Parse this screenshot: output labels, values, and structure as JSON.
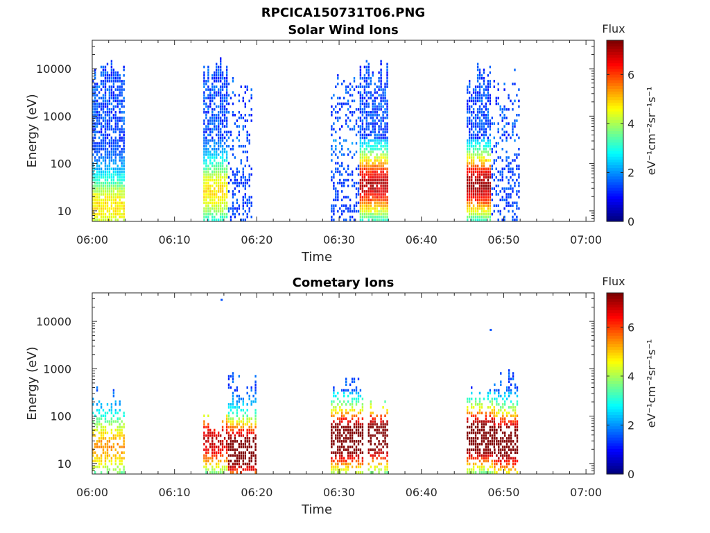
{
  "figure": {
    "title": "RPCICA150731T06.PNG"
  },
  "chart_data": [
    {
      "type": "heatmap",
      "title": "Solar Wind Ions",
      "xlabel": "Time",
      "ylabel": "Energy (eV)",
      "x_range_minutes": [
        0,
        61
      ],
      "x_ticks": [
        {
          "minute": 0,
          "label": "06:00"
        },
        {
          "minute": 10,
          "label": "06:10"
        },
        {
          "minute": 20,
          "label": "06:20"
        },
        {
          "minute": 30,
          "label": "06:30"
        },
        {
          "minute": 40,
          "label": "06:40"
        },
        {
          "minute": 50,
          "label": "06:50"
        },
        {
          "minute": 60,
          "label": "07:00"
        }
      ],
      "y_scale": "log",
      "y_range_eV": [
        6,
        40000
      ],
      "y_ticks": [
        {
          "value": 10,
          "label": "10"
        },
        {
          "value": 100,
          "label": "100"
        },
        {
          "value": 1000,
          "label": "1000"
        },
        {
          "value": 10000,
          "label": "10000"
        }
      ],
      "colorbar": {
        "title": "Flux",
        "units_label": "eV⁻¹cm⁻²sr⁻¹s⁻¹",
        "range": [
          0,
          7.4
        ],
        "ticks": [
          {
            "value": 0,
            "label": "0"
          },
          {
            "value": 2,
            "label": "2"
          },
          {
            "value": 4,
            "label": "4"
          },
          {
            "value": 6,
            "label": "6"
          }
        ],
        "colormap": "jet"
      },
      "bursts": [
        {
          "t_start": 0.0,
          "t_end": 3.8,
          "E_max": 16000,
          "peak_E": 12,
          "peak_flux": 3.4,
          "density": 0.75
        },
        {
          "t_start": 13.5,
          "t_end": 16.5,
          "E_max": 17000,
          "peak_E": 25,
          "peak_flux": 3.4,
          "density": 0.75
        },
        {
          "t_start": 16.5,
          "t_end": 19.5,
          "E_max": 8000,
          "peak_E": 3000,
          "peak_flux": 1.9,
          "density": 0.25
        },
        {
          "t_start": 29.0,
          "t_end": 32.5,
          "E_max": 10000,
          "peak_E": 2000,
          "peak_flux": 2.2,
          "density": 0.25
        },
        {
          "t_start": 32.5,
          "t_end": 36.0,
          "E_max": 14000,
          "peak_E": 36,
          "peak_flux": 5.6,
          "density": 0.75
        },
        {
          "t_start": 45.5,
          "t_end": 48.5,
          "E_max": 14000,
          "peak_E": 36,
          "peak_flux": 5.8,
          "density": 0.75
        },
        {
          "t_start": 48.5,
          "t_end": 52.0,
          "E_max": 10000,
          "peak_E": 3000,
          "peak_flux": 1.9,
          "density": 0.25
        }
      ]
    },
    {
      "type": "heatmap",
      "title": "Cometary Ions",
      "xlabel": "Time",
      "ylabel": "Energy (eV)",
      "x_range_minutes": [
        0,
        61
      ],
      "x_ticks": [
        {
          "minute": 0,
          "label": "06:00"
        },
        {
          "minute": 10,
          "label": "06:10"
        },
        {
          "minute": 20,
          "label": "06:20"
        },
        {
          "minute": 30,
          "label": "06:30"
        },
        {
          "minute": 40,
          "label": "06:40"
        },
        {
          "minute": 50,
          "label": "06:50"
        },
        {
          "minute": 60,
          "label": "07:00"
        }
      ],
      "y_scale": "log",
      "y_range_eV": [
        6,
        40000
      ],
      "y_ticks": [
        {
          "value": 10,
          "label": "10"
        },
        {
          "value": 100,
          "label": "100"
        },
        {
          "value": 1000,
          "label": "1000"
        },
        {
          "value": 10000,
          "label": "10000"
        }
      ],
      "colorbar": {
        "title": "Flux",
        "units_label": "eV⁻¹cm⁻²sr⁻¹s⁻¹",
        "range": [
          0,
          7.4
        ],
        "ticks": [
          {
            "value": 0,
            "label": "0"
          },
          {
            "value": 2,
            "label": "2"
          },
          {
            "value": 4,
            "label": "4"
          },
          {
            "value": 6,
            "label": "6"
          }
        ],
        "colormap": "jet"
      },
      "bursts": [
        {
          "t_start": 0.0,
          "t_end": 3.8,
          "E_max": 400,
          "peak_E": 22,
          "peak_flux": 4.0,
          "density": 0.45
        },
        {
          "t_start": 13.5,
          "t_end": 16.5,
          "E_max": 120,
          "peak_E": 30,
          "peak_flux": 5.6,
          "density": 0.5
        },
        {
          "t_start": 16.5,
          "t_end": 19.8,
          "E_max": 900,
          "peak_E": 18,
          "peak_flux": 6.8,
          "density": 0.45
        },
        {
          "t_start": 29.0,
          "t_end": 33.0,
          "E_max": 900,
          "peak_E": 32,
          "peak_flux": 7.0,
          "density": 0.45
        },
        {
          "t_start": 33.5,
          "t_end": 36.0,
          "E_max": 250,
          "peak_E": 35,
          "peak_flux": 6.8,
          "density": 0.45
        },
        {
          "t_start": 45.5,
          "t_end": 48.8,
          "E_max": 400,
          "peak_E": 35,
          "peak_flux": 7.0,
          "density": 0.5
        },
        {
          "t_start": 48.8,
          "t_end": 51.8,
          "E_max": 1100,
          "peak_E": 28,
          "peak_flux": 7.0,
          "density": 0.45
        }
      ],
      "outliers": [
        {
          "t": 15.6,
          "E": 28000,
          "flux": 1.5
        },
        {
          "t": 48.3,
          "E": 6500,
          "flux": 1.5
        }
      ]
    }
  ]
}
